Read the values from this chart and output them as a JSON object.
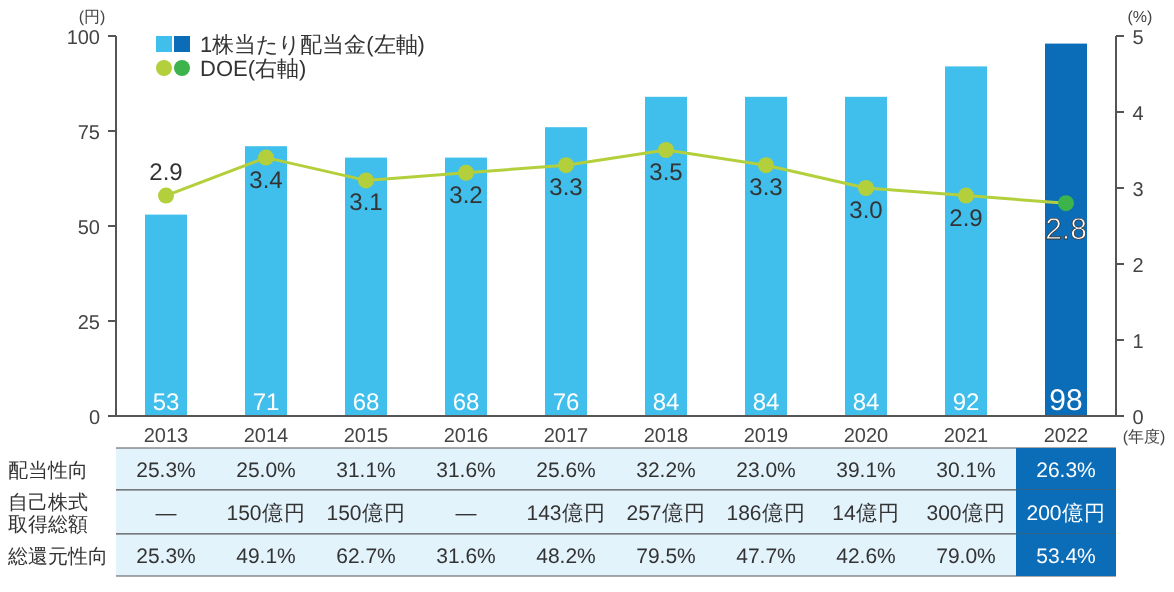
{
  "chart_data": {
    "type": "bar",
    "categories": [
      "2013",
      "2014",
      "2015",
      "2016",
      "2017",
      "2018",
      "2019",
      "2020",
      "2021",
      "2022"
    ],
    "xlabel": "(年度)",
    "ylabel": "(円)",
    "y2label": "(%)",
    "ylim": [
      0,
      100
    ],
    "yticks": [
      0,
      25,
      50,
      75,
      100
    ],
    "y2lim": [
      0,
      5
    ],
    "y2ticks": [
      0,
      1,
      2,
      3,
      4,
      5
    ],
    "legend": "top left",
    "data_labels": true,
    "series": [
      {
        "name": "1株当たり配当金(左軸)",
        "color": "#40bfec",
        "colors": [
          "#40bfec",
          "#40bfec",
          "#40bfec",
          "#40bfec",
          "#40bfec",
          "#40bfec",
          "#40bfec",
          "#40bfec",
          "#40bfec",
          "#0b6db7"
        ],
        "values": [
          53,
          71,
          68,
          68,
          76,
          84,
          84,
          84,
          92,
          98
        ]
      },
      {
        "name": "DOE(右軸)",
        "type": "line",
        "axis": "y2",
        "marker": "circle",
        "color": "#b4cf3c",
        "colors": [
          "#b4cf3c",
          "#b4cf3c",
          "#b4cf3c",
          "#b4cf3c",
          "#b4cf3c",
          "#b4cf3c",
          "#b4cf3c",
          "#b4cf3c",
          "#b4cf3c",
          "#3cb44b"
        ],
        "values": [
          2.9,
          3.4,
          3.1,
          3.2,
          3.3,
          3.5,
          3.3,
          3.0,
          2.9,
          2.8
        ],
        "value_labels": [
          "2.9",
          "3.4",
          "3.1",
          "3.2",
          "3.3",
          "3.5",
          "3.3",
          "3.0",
          "2.9",
          "2.8"
        ]
      }
    ],
    "annotations": [
      "配当性向",
      "25.3%",
      "25.0%",
      "31.1%",
      "31.6%",
      "25.6%",
      "32.2%",
      "23.0%",
      "39.1%",
      "30.1%",
      "26.3%",
      "自己株式取得総額",
      "—",
      "150億円",
      "150億円",
      "—",
      "143億円",
      "257億円",
      "186億円",
      "14億円",
      "300億円",
      "200億円",
      "総還元性向",
      "25.3%",
      "49.1%",
      "62.7%",
      "31.6%",
      "48.2%",
      "79.5%",
      "47.7%",
      "42.6%",
      "79.0%",
      "53.4%"
    ]
  }
}
